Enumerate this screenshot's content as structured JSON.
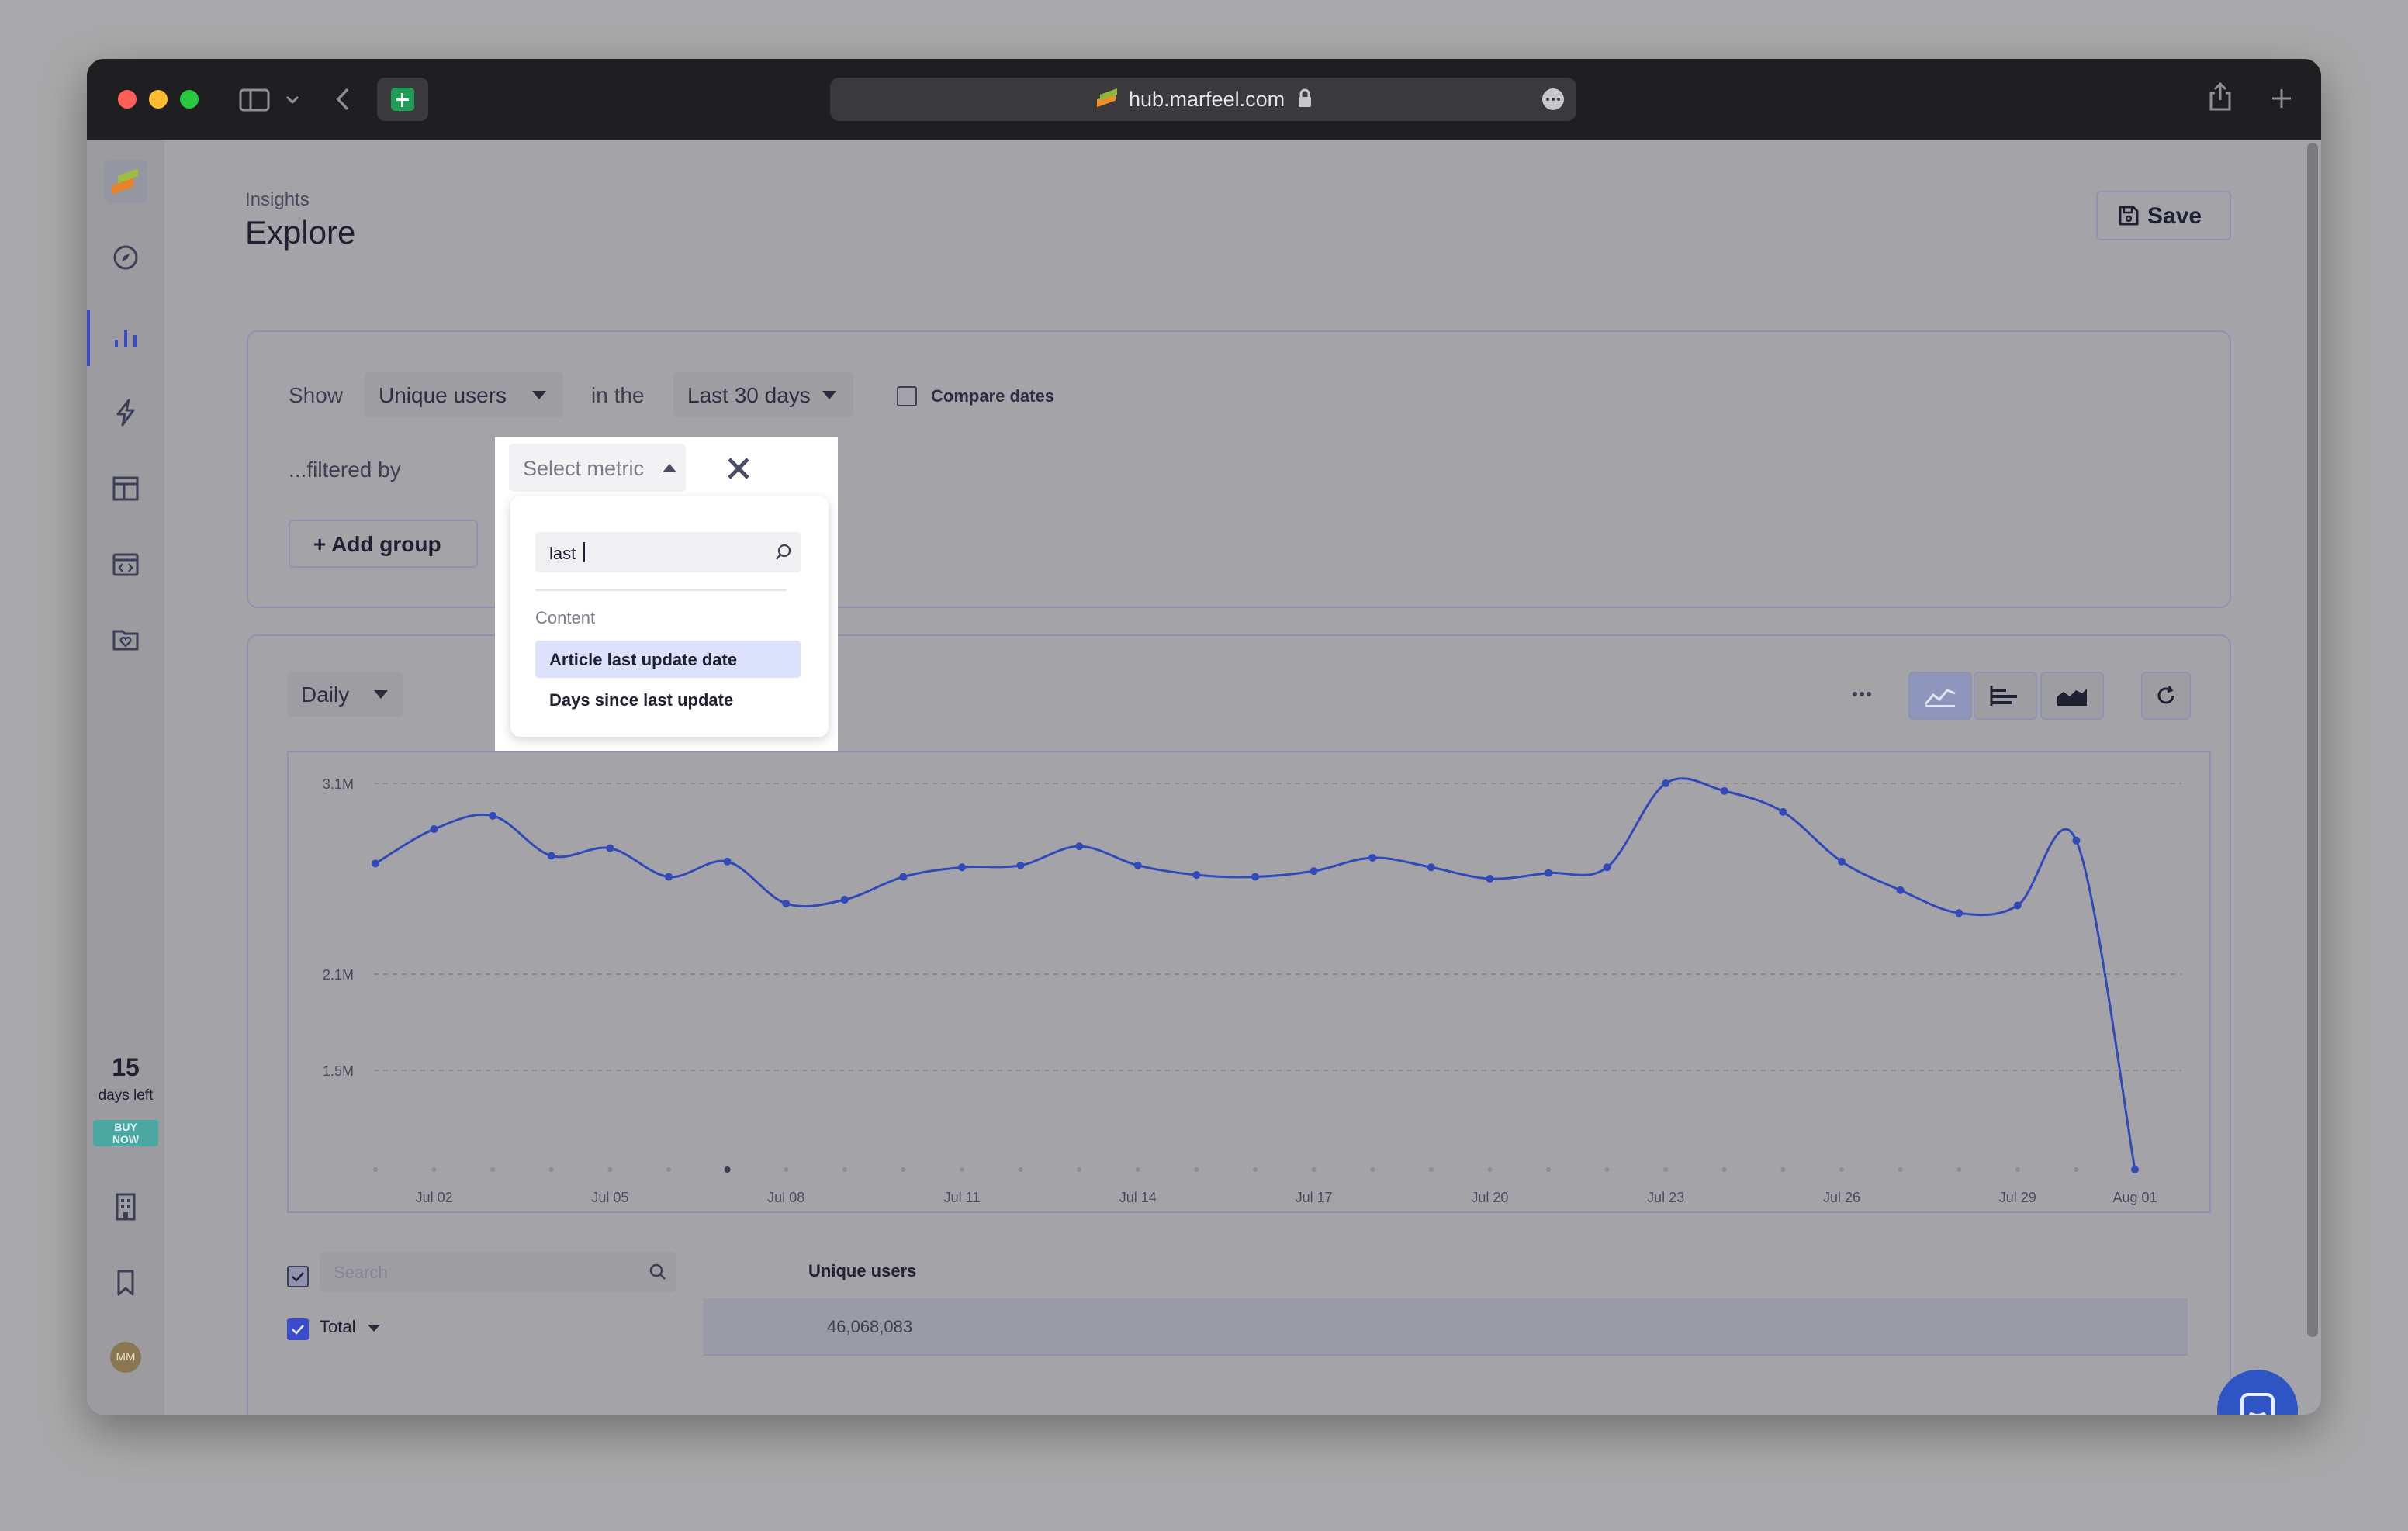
{
  "browser": {
    "url": "hub.marfeel.com",
    "traffic_colors": [
      "#ff5f57",
      "#febc2e",
      "#28c840"
    ]
  },
  "sidebar": {
    "trial_days": "15",
    "trial_label": "days left",
    "buy_label": "BUY NOW",
    "avatar_initials": "MM",
    "accent": "#3b4cca"
  },
  "header": {
    "breadcrumb": "Insights",
    "title": "Explore",
    "save_label": "Save"
  },
  "query": {
    "show_label": "Show",
    "metric_value": "Unique users",
    "in_the_label": "in the",
    "range_value": "Last 30 days",
    "compare_label": "Compare dates",
    "filtered_label": "...filtered by",
    "filter_placeholder": "Select metric",
    "add_group_label": "+ Add group"
  },
  "metric_menu": {
    "search_value": "last",
    "section": "Content",
    "options": [
      "Article last update date",
      "Days since last update"
    ],
    "highlight_color": "#dce2fb"
  },
  "chart_panel": {
    "granularity": "Daily"
  },
  "chart_data": {
    "type": "line",
    "ytick_labels": [
      "3.1M",
      "2.1M",
      "1.5M"
    ],
    "xtick_labels": [
      "Jul 02",
      "Jul 05",
      "Jul 08",
      "Jul 11",
      "Jul 14",
      "Jul 17",
      "Jul 20",
      "Jul 23",
      "Jul 26",
      "Jul 29",
      "Aug 01"
    ],
    "grid": true,
    "line_color": "#3249b8",
    "series": [
      {
        "values": [
          2.68,
          2.86,
          2.93,
          2.72,
          2.76,
          2.61,
          2.69,
          2.47,
          2.49,
          2.61,
          2.66,
          2.67,
          2.77,
          2.67,
          2.62,
          2.61,
          2.64,
          2.71,
          2.66,
          2.6,
          2.63,
          2.66,
          3.1,
          3.06,
          2.95,
          2.69,
          2.54,
          2.42,
          2.46,
          2.8,
          0.9
        ]
      }
    ]
  },
  "table": {
    "search_placeholder": "Search",
    "column": "Unique users",
    "total_label": "Total",
    "total_value": "46,068,083"
  }
}
